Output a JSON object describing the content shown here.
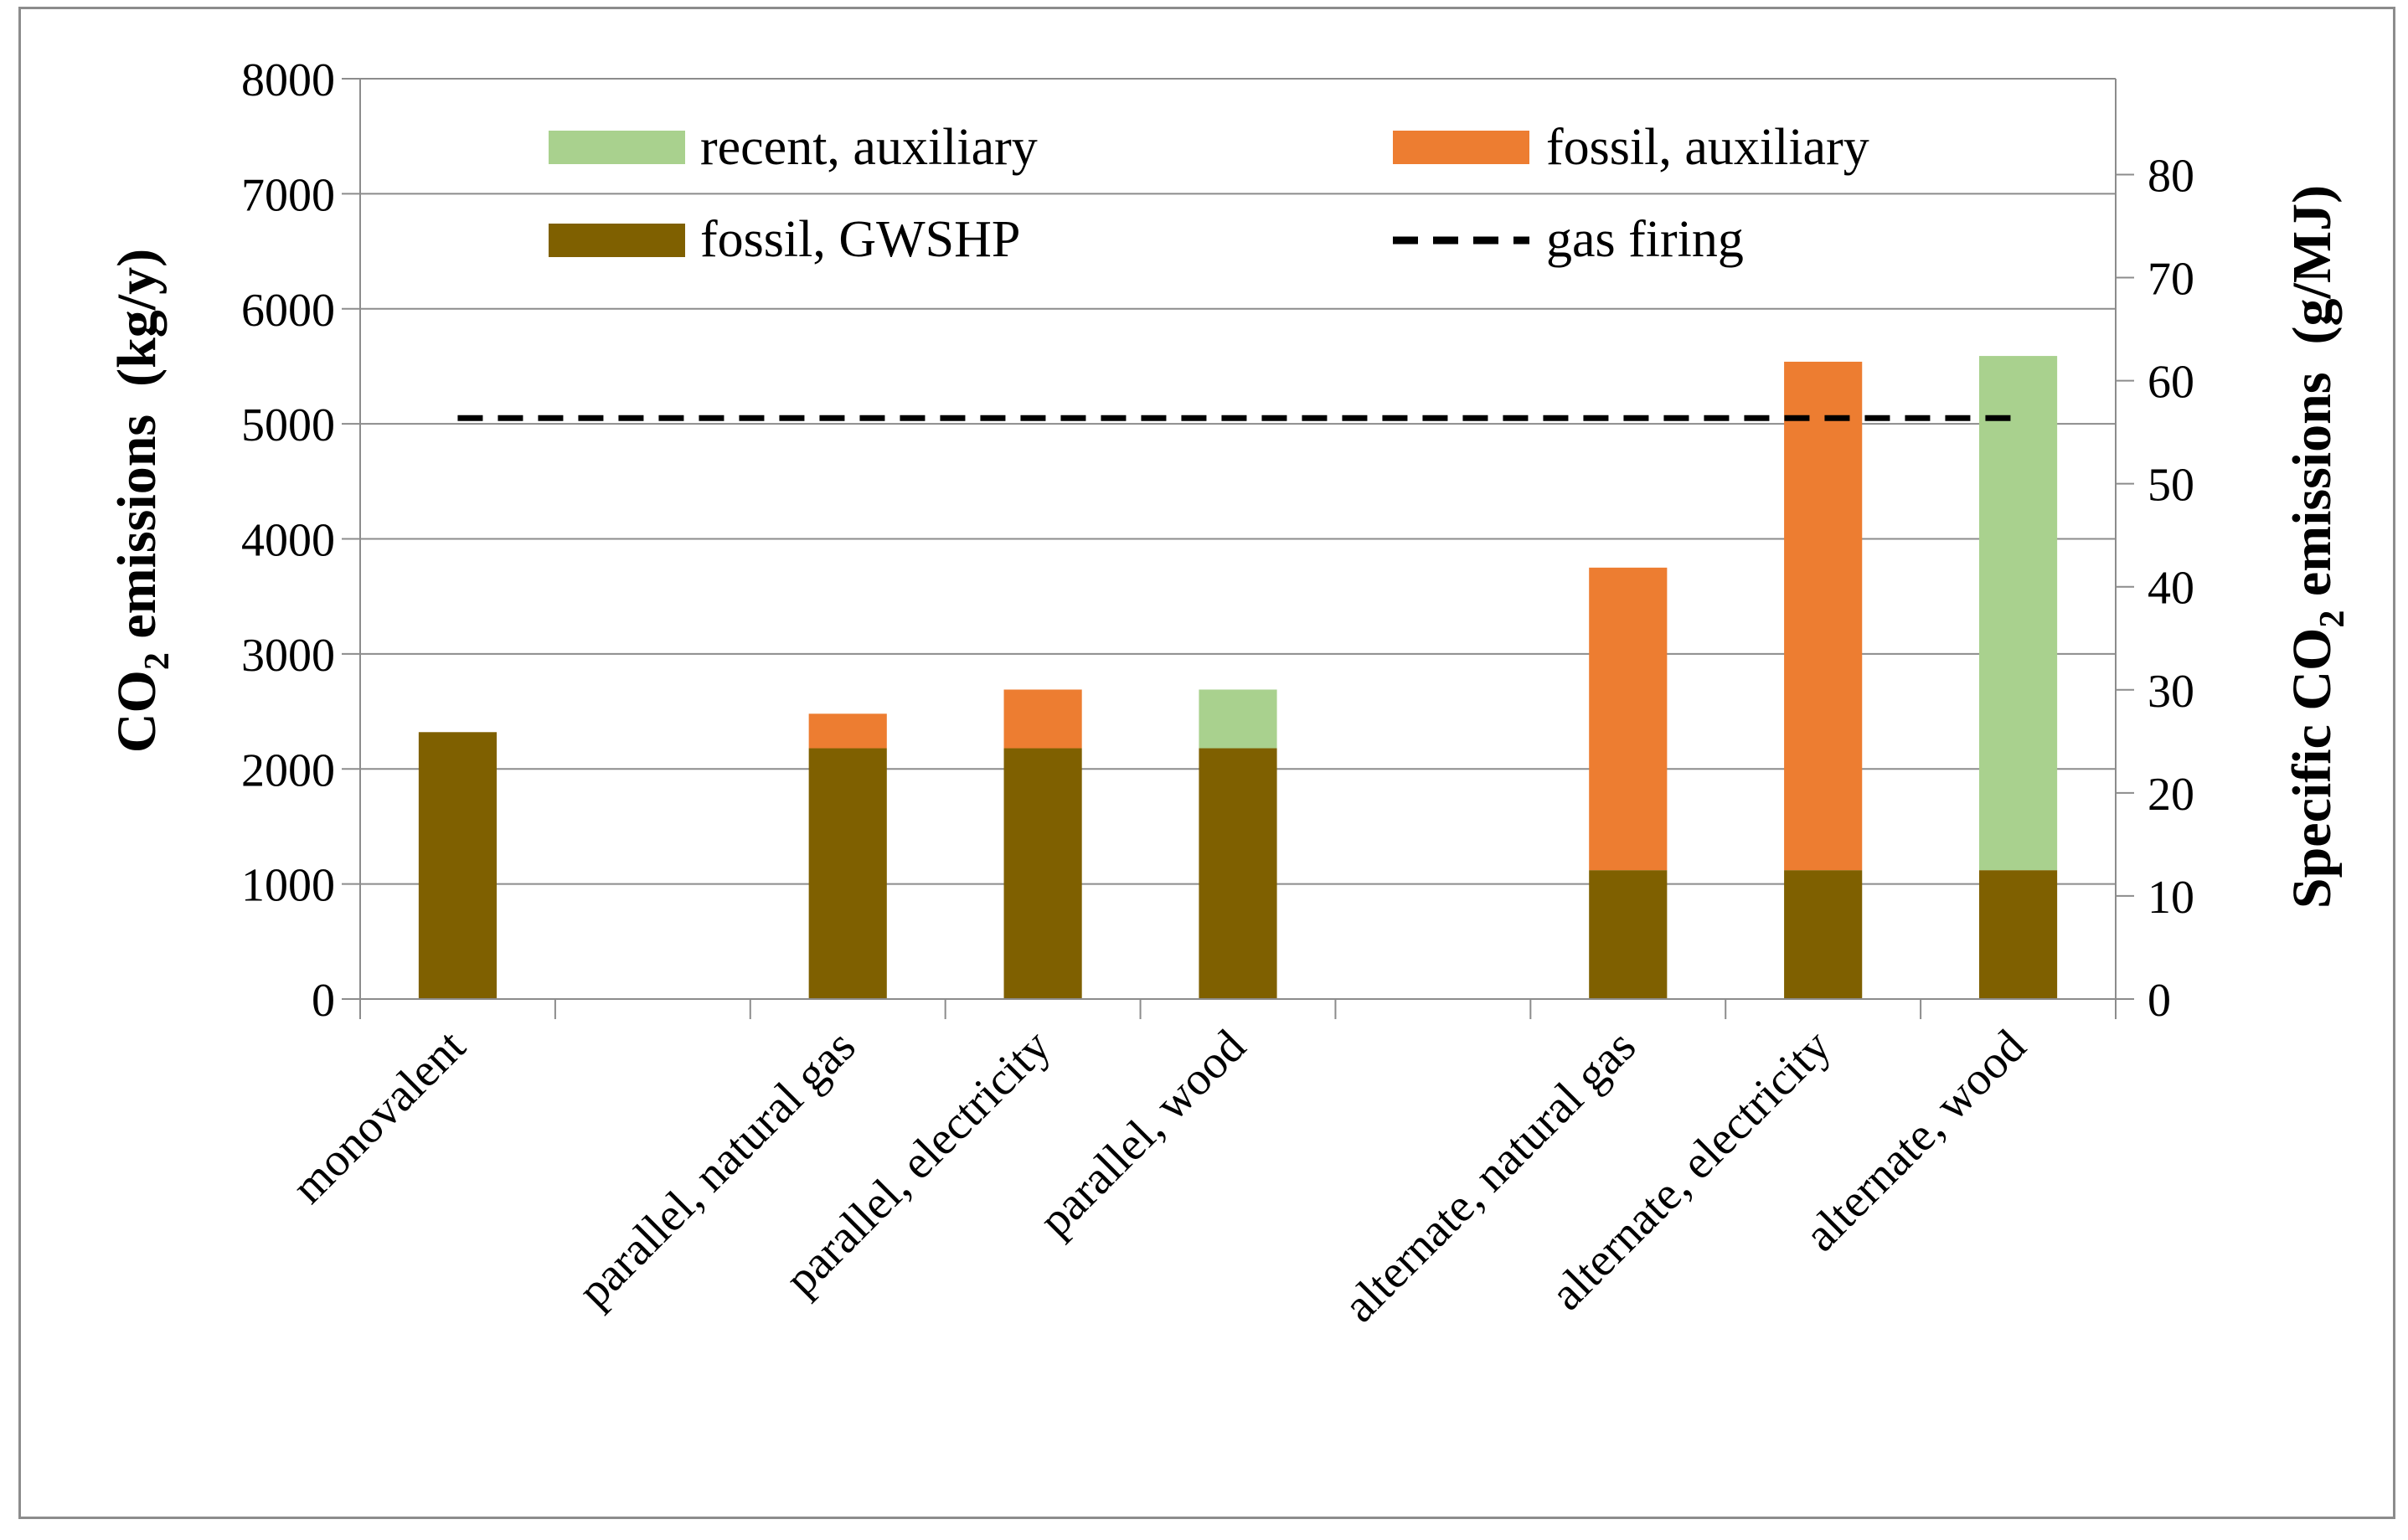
{
  "chart_data": {
    "type": "bar",
    "stacked": true,
    "categories": [
      "monovalent",
      "",
      "parallel, natural gas",
      "parallel, electricity",
      "parallel, wood",
      "",
      "alternate, natural gas",
      "alternate, electricity",
      "alternate, wood"
    ],
    "series": [
      {
        "name": "fossil, GWSHP",
        "color": "#7f6000",
        "values": [
          2320,
          null,
          2180,
          2180,
          2180,
          null,
          1120,
          1120,
          1120
        ]
      },
      {
        "name": "fossil, auxiliary",
        "color": "#ed7d31",
        "values": [
          0,
          null,
          300,
          510,
          0,
          null,
          2630,
          4420,
          0
        ]
      },
      {
        "name": "recent, auxiliary",
        "color": "#a9d18e",
        "values": [
          0,
          null,
          0,
          0,
          510,
          null,
          0,
          0,
          4470
        ]
      }
    ],
    "reference_line": {
      "name": "gas firing",
      "style": "dashed",
      "color": "#000000",
      "value_primary": 5050,
      "value_secondary": 56.4
    },
    "y_axis": {
      "label_main": "CO",
      "label_sub": "2",
      "label_rest": " emissions  (kg/y)",
      "range": [
        0,
        8000
      ],
      "ticks": [
        0,
        1000,
        2000,
        3000,
        4000,
        5000,
        6000,
        7000,
        8000
      ],
      "gridlines": true
    },
    "y2_axis": {
      "label_main": "Specific CO",
      "label_sub": "2",
      "label_rest": " emissions  (g/MJ)",
      "range": [
        0,
        89.3
      ],
      "ticks": [
        0,
        10,
        20,
        30,
        40,
        50,
        60,
        70,
        80
      ]
    },
    "legend": {
      "placement": "top",
      "entries": [
        {
          "label": "recent, auxiliary",
          "color": "#a9d18e",
          "kind": "box"
        },
        {
          "label": "fossil, auxiliary",
          "color": "#ed7d31",
          "kind": "box"
        },
        {
          "label": "fossil, GWSHP",
          "color": "#7f6000",
          "kind": "box"
        },
        {
          "label": "gas firing",
          "color": "#000000",
          "kind": "dash"
        }
      ]
    }
  }
}
